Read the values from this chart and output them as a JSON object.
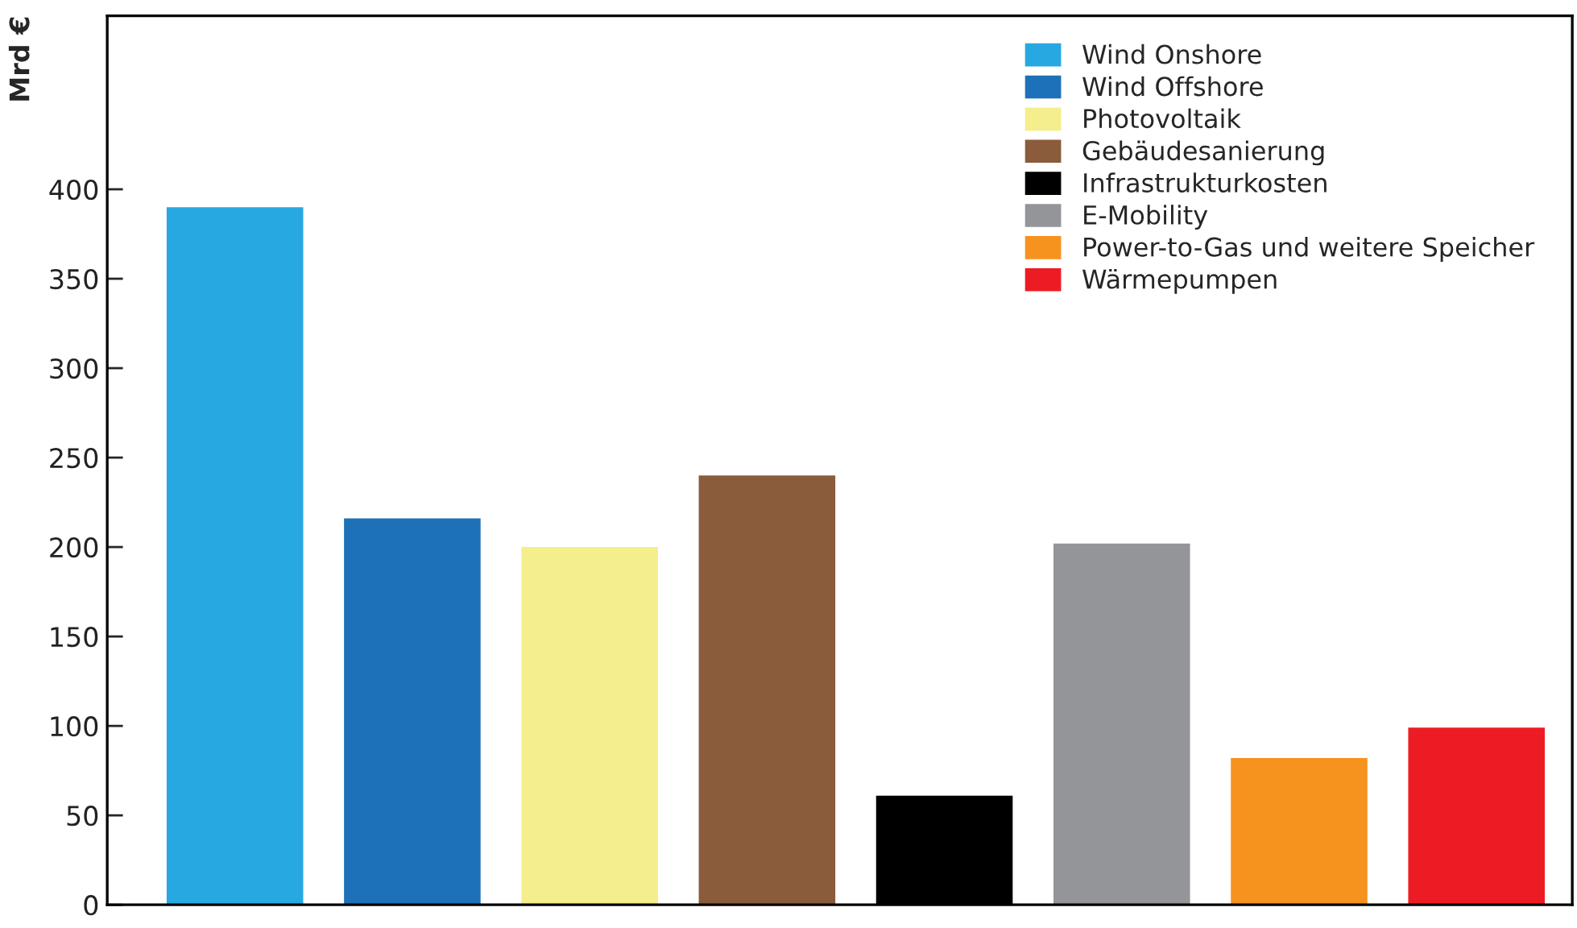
{
  "chart_data": {
    "type": "bar",
    "ylabel": "Mrd €",
    "categories": [
      null,
      null,
      null,
      null,
      null,
      null,
      null,
      null
    ],
    "series": [
      {
        "name": "Wind Onshore",
        "color": "#27a8e0",
        "values": [
          390,
          null,
          null,
          null,
          null,
          null,
          null,
          null
        ]
      },
      {
        "name": "Wind Offshore",
        "color": "#1d71b8",
        "values": [
          null,
          216,
          null,
          null,
          null,
          null,
          null,
          null
        ]
      },
      {
        "name": "Photovoltaik",
        "color": "#f5ee8c",
        "values": [
          null,
          null,
          200,
          null,
          null,
          null,
          null,
          null
        ]
      },
      {
        "name": "Gebäudesanierung",
        "color": "#8a5c3b",
        "values": [
          null,
          null,
          null,
          240,
          null,
          null,
          null,
          null
        ]
      },
      {
        "name": "Infrastrukturkosten",
        "color": "#000000",
        "values": [
          null,
          null,
          null,
          null,
          61,
          null,
          null,
          null
        ]
      },
      {
        "name": "E-Mobility",
        "color": "#949598",
        "values": [
          null,
          null,
          null,
          null,
          null,
          202,
          null,
          null
        ]
      },
      {
        "name": "Power-to-Gas und weitere Speicher",
        "color": "#f6921e",
        "values": [
          null,
          null,
          null,
          null,
          null,
          null,
          82,
          null
        ]
      },
      {
        "name": "Wärmepumpen",
        "color": "#ed1c24",
        "values": [
          null,
          null,
          null,
          null,
          null,
          null,
          null,
          99
        ]
      }
    ],
    "ylim": [
      0,
      497
    ],
    "yticks": [
      0,
      50,
      100,
      150,
      200,
      250,
      300,
      350,
      400
    ],
    "grid": false,
    "legend": "top right",
    "tick_labels": "y"
  }
}
